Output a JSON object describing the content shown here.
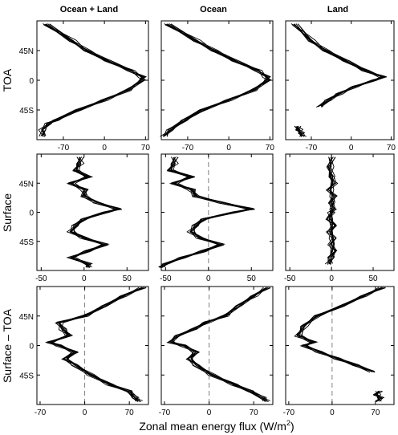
{
  "figure": {
    "column_titles": [
      "Ocean + Land",
      "Ocean",
      "Land"
    ],
    "row_labels": [
      "TOA",
      "Surface",
      "Surface – TOA"
    ],
    "xlabel_main": "Zonal mean energy flux (W/m",
    "xlabel_sup": "2",
    "xlabel_close": ")",
    "ytick_labels": [
      "45N",
      "0",
      "45S"
    ],
    "ytick_values": [
      45,
      0,
      -45
    ],
    "line_color": "#000000",
    "zero_line_color": "#808080"
  },
  "chart_data": [
    {
      "type": "line",
      "row": 0,
      "col": 0,
      "ylabel": "TOA",
      "title": "Ocean + Land",
      "xlim": [
        -115,
        75
      ],
      "ylim": [
        -90,
        90
      ],
      "xticks": [
        -70,
        0,
        70
      ],
      "xtick_labels": [
        "-70",
        "0",
        "70"
      ],
      "zero_line": false,
      "lat": [
        85,
        60,
        45,
        30,
        15,
        5,
        0,
        -15,
        -30,
        -45,
        -60,
        -65,
        -75,
        -85
      ],
      "base": [
        -100,
        -55,
        -30,
        5,
        45,
        64,
        64,
        40,
        0,
        -45,
        -82,
        -95,
        -105,
        -105
      ]
    },
    {
      "type": "line",
      "row": 0,
      "col": 1,
      "title": "Ocean",
      "xlim": [
        -115,
        75
      ],
      "ylim": [
        -90,
        90
      ],
      "xticks": [
        -70,
        0,
        70
      ],
      "xtick_labels": [
        "-70",
        "0",
        "70"
      ],
      "zero_line": false,
      "lat": [
        85,
        60,
        45,
        30,
        15,
        5,
        0,
        -15,
        -30,
        -45,
        -60,
        -75,
        -85
      ],
      "base": [
        -105,
        -55,
        -25,
        10,
        50,
        64,
        66,
        42,
        0,
        -45,
        -75,
        -100,
        -110
      ]
    },
    {
      "type": "line",
      "row": 0,
      "col": 2,
      "title": "Land",
      "xlim": [
        -115,
        75
      ],
      "ylim": [
        -90,
        90
      ],
      "xticks": [
        -70,
        0,
        70
      ],
      "xtick_labels": [
        "-70",
        "0",
        "70"
      ],
      "zero_line": false,
      "lat": [
        85,
        60,
        45,
        30,
        15,
        5,
        0,
        -10,
        -20,
        -30,
        -40
      ],
      "base": [
        -100,
        -70,
        -45,
        -10,
        25,
        55,
        40,
        5,
        -20,
        -40,
        -55
      ],
      "lat2": [
        -70,
        -75,
        -80,
        -85
      ],
      "base2": [
        -95,
        -92,
        -88,
        -85
      ]
    },
    {
      "type": "line",
      "row": 1,
      "col": 0,
      "ylabel": "Surface",
      "xlim": [
        -55,
        75
      ],
      "ylim": [
        -90,
        90
      ],
      "xticks": [
        -50,
        0,
        50
      ],
      "xtick_labels": [
        "-50",
        "0",
        "50"
      ],
      "zero_line": false,
      "lat": [
        85,
        75,
        65,
        55,
        45,
        35,
        25,
        15,
        5,
        0,
        -10,
        -20,
        -30,
        -40,
        -50,
        -60,
        -70,
        -80,
        -85
      ],
      "base": [
        -5,
        -5,
        -10,
        5,
        -15,
        0,
        0,
        15,
        40,
        25,
        0,
        -10,
        -15,
        0,
        25,
        5,
        -15,
        5,
        5
      ]
    },
    {
      "type": "line",
      "row": 1,
      "col": 1,
      "xlim": [
        -55,
        75
      ],
      "ylim": [
        -90,
        90
      ],
      "xticks": [
        -50,
        0,
        50
      ],
      "xtick_labels": [
        "-50",
        "0",
        "50"
      ],
      "zero_line": true,
      "lat": [
        85,
        75,
        65,
        55,
        45,
        35,
        25,
        15,
        5,
        0,
        -10,
        -20,
        -30,
        -40,
        -50,
        -60,
        -70,
        -80,
        -85
      ],
      "base": [
        -40,
        -40,
        -45,
        -20,
        -40,
        -20,
        -15,
        15,
        50,
        30,
        -5,
        -15,
        -20,
        -10,
        15,
        -5,
        -30,
        -50,
        -55
      ]
    },
    {
      "type": "line",
      "row": 1,
      "col": 2,
      "xlim": [
        -55,
        75
      ],
      "ylim": [
        -90,
        90
      ],
      "xticks": [
        -50,
        0,
        50
      ],
      "xtick_labels": [
        "-50",
        "0",
        "50"
      ],
      "zero_line": true,
      "lat": [
        85,
        70,
        55,
        45,
        35,
        25,
        15,
        5,
        0,
        -10,
        -20,
        -30,
        -40,
        -50,
        -60,
        -70,
        -80
      ],
      "base": [
        0,
        -2,
        0,
        3,
        -2,
        2,
        0,
        2,
        0,
        -2,
        3,
        -2,
        2,
        0,
        3,
        0,
        -3
      ]
    },
    {
      "type": "line",
      "row": 2,
      "col": 0,
      "ylabel": "Surface – TOA",
      "xlim": [
        -75,
        100
      ],
      "ylim": [
        -90,
        90
      ],
      "xticks": [
        -70,
        0,
        70
      ],
      "xtick_labels": [
        "-70",
        "0",
        "70"
      ],
      "zero_line": true,
      "lat": [
        88,
        75,
        60,
        45,
        35,
        25,
        15,
        5,
        0,
        -10,
        -20,
        -30,
        -45,
        -60,
        -70,
        -80,
        -85
      ],
      "base": [
        90,
        60,
        30,
        0,
        -40,
        -35,
        -25,
        -55,
        -40,
        -15,
        -30,
        -15,
        10,
        40,
        70,
        80,
        85
      ]
    },
    {
      "type": "line",
      "row": 2,
      "col": 1,
      "xlim": [
        -75,
        100
      ],
      "ylim": [
        -90,
        90
      ],
      "xticks": [
        -70,
        0,
        70
      ],
      "xtick_labels": [
        "-70",
        "0",
        "70"
      ],
      "zero_line": true,
      "lat": [
        88,
        75,
        60,
        45,
        35,
        25,
        15,
        5,
        0,
        -10,
        -20,
        -30,
        -45,
        -60,
        -70,
        -80,
        -85
      ],
      "base": [
        90,
        70,
        45,
        25,
        -5,
        -25,
        -50,
        -60,
        -40,
        -20,
        -30,
        -20,
        5,
        40,
        65,
        85,
        90
      ]
    },
    {
      "type": "line",
      "row": 2,
      "col": 2,
      "xlim": [
        -75,
        100
      ],
      "ylim": [
        -90,
        90
      ],
      "xticks": [
        -70,
        0,
        70
      ],
      "xtick_labels": [
        "-70",
        "0",
        "70"
      ],
      "zero_line": true,
      "lat": [
        88,
        75,
        60,
        45,
        30,
        15,
        5,
        0,
        -10,
        -20,
        -30,
        -40
      ],
      "base": [
        80,
        50,
        15,
        -25,
        -45,
        -55,
        -30,
        -45,
        -20,
        10,
        40,
        65
      ],
      "lat2": [
        -70,
        -75,
        -80,
        -85
      ],
      "base2": [
        75,
        72,
        78,
        74
      ]
    }
  ]
}
